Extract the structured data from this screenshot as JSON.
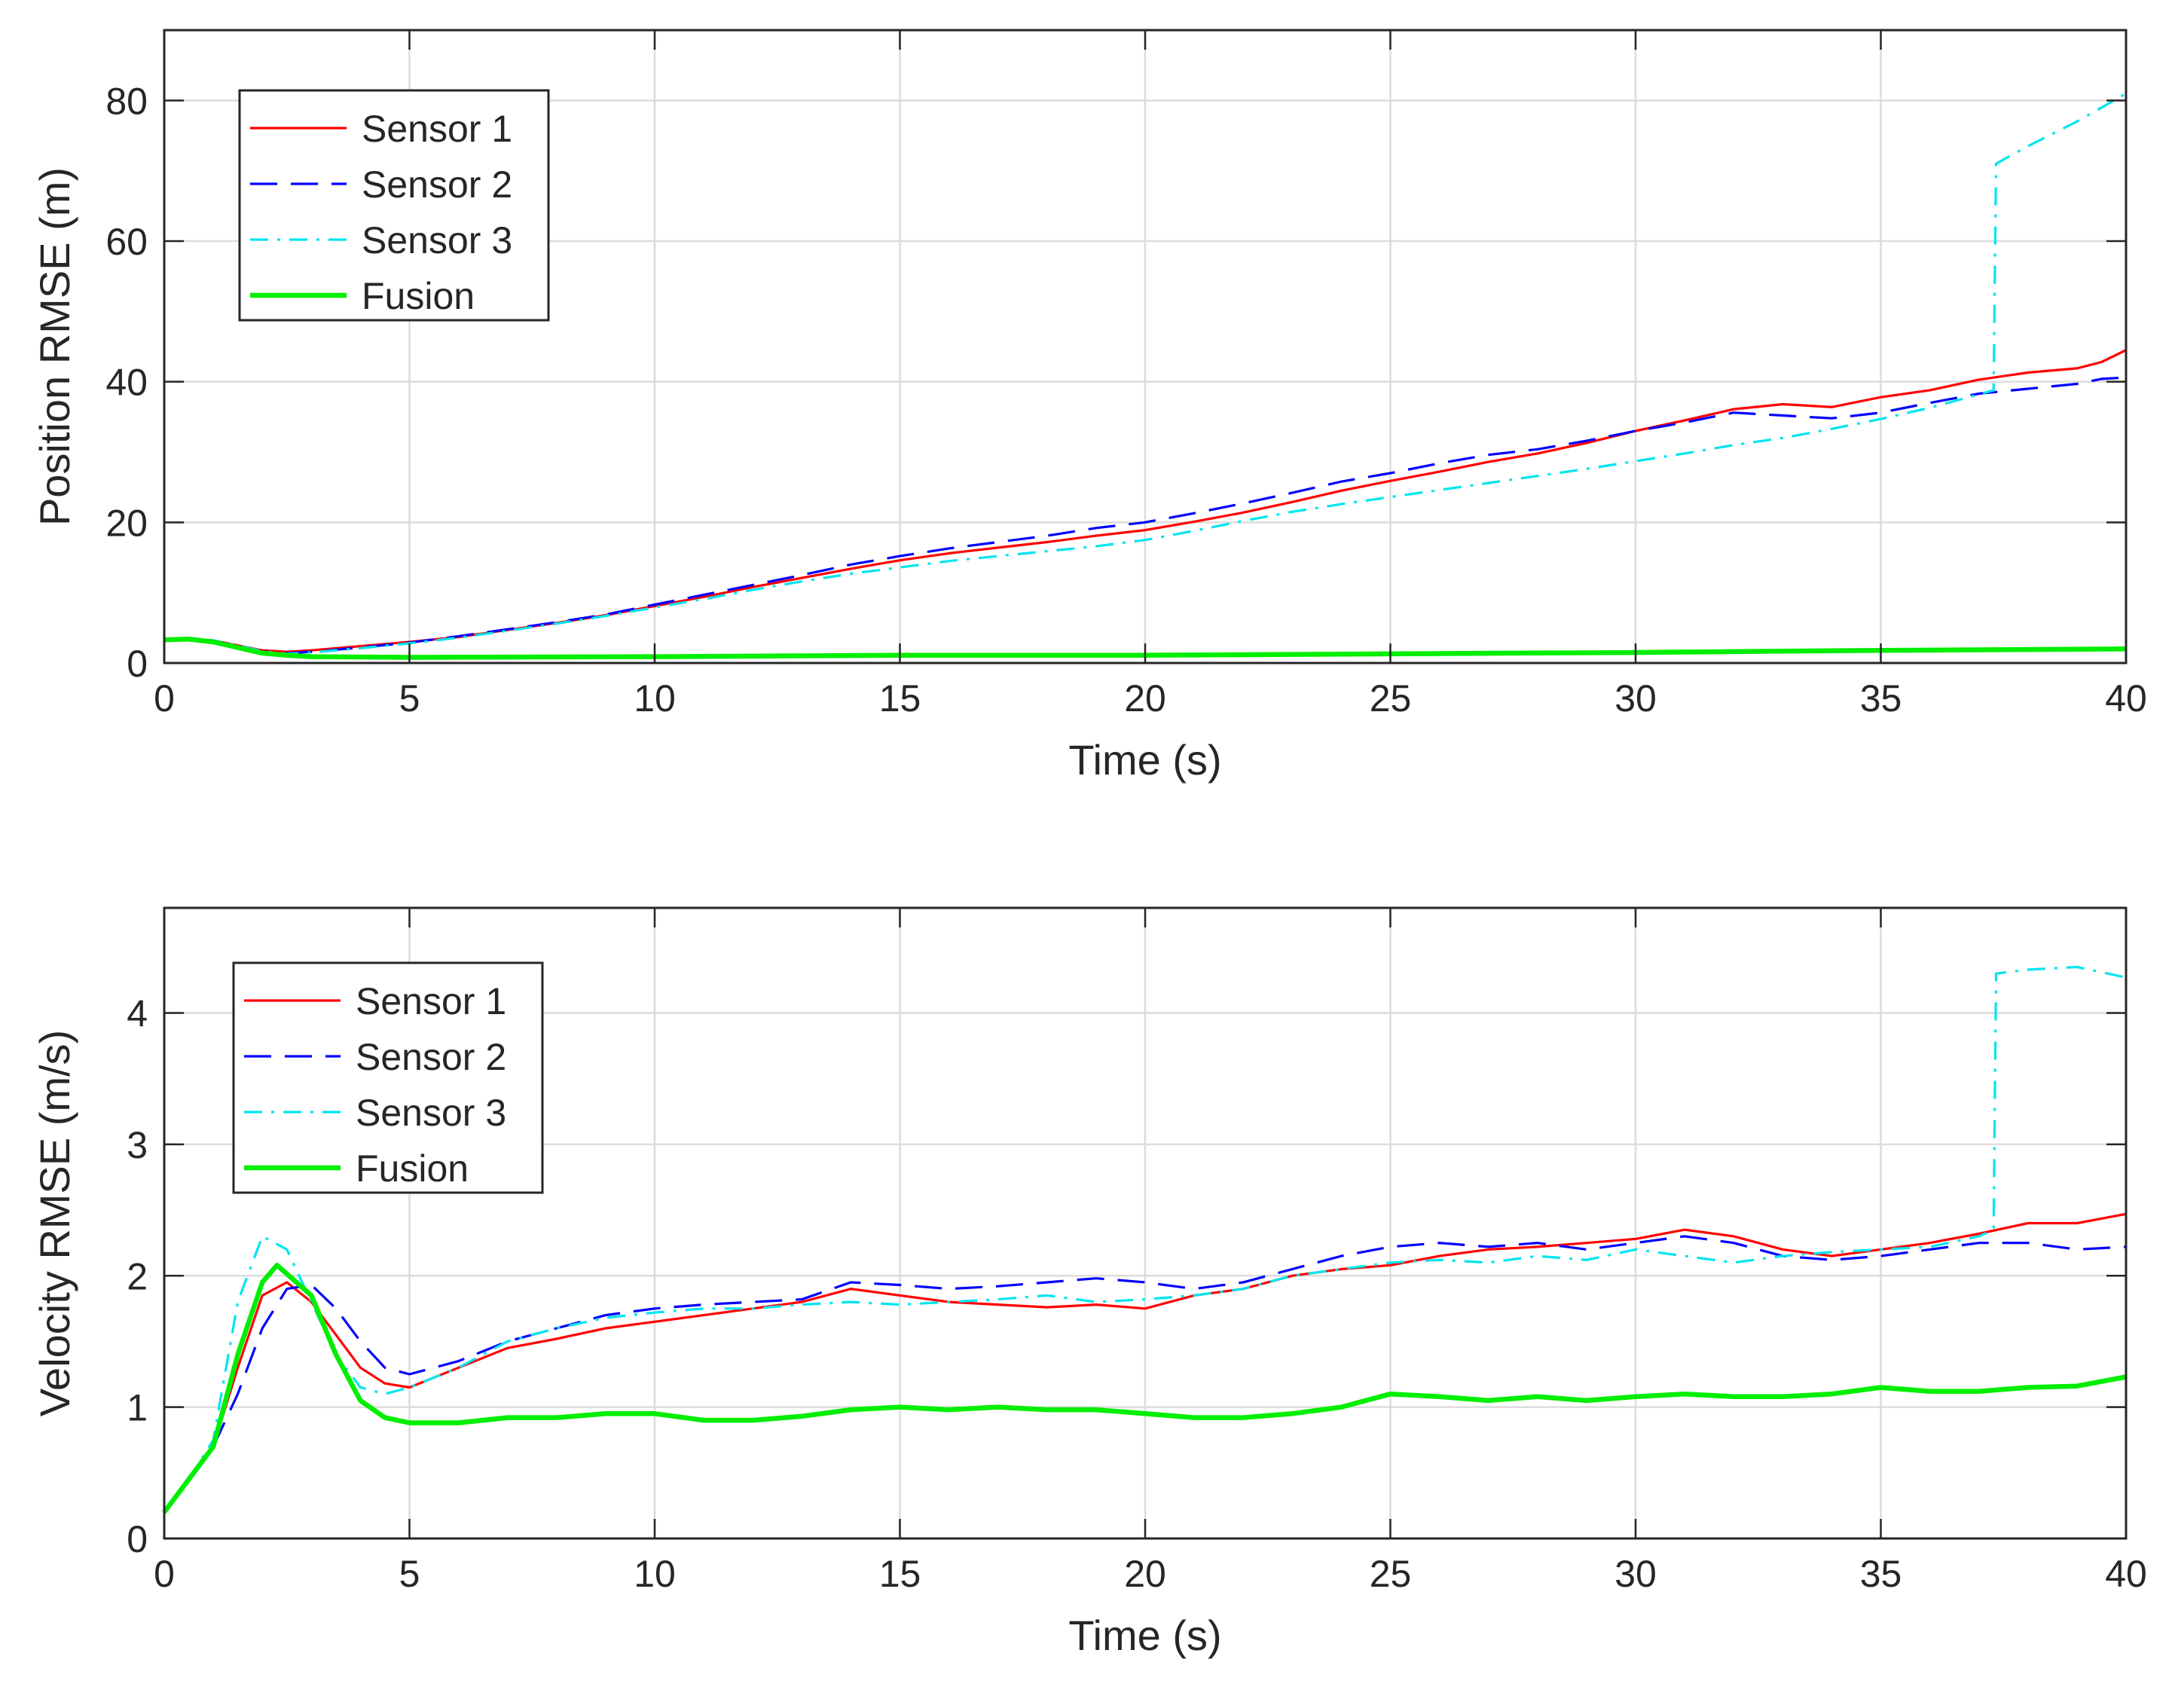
{
  "chart_data": [
    {
      "type": "line",
      "title": "",
      "xlabel": "Time (s)",
      "ylabel": "Position RMSE (m)",
      "xlim": [
        0,
        40
      ],
      "ylim": [
        0,
        90
      ],
      "xticks": [
        0,
        5,
        10,
        15,
        20,
        25,
        30,
        35,
        40
      ],
      "yticks": [
        0,
        20,
        40,
        60,
        80
      ],
      "grid": true,
      "legend_position": "top-left",
      "series": [
        {
          "name": "Sensor 1",
          "color": "#ff0000",
          "style": "solid",
          "x": [
            0,
            0.5,
            1,
            1.5,
            2,
            2.5,
            3,
            4,
            5,
            6,
            7,
            8,
            9,
            10,
            11,
            12,
            13,
            14,
            15,
            16,
            17,
            18,
            19,
            20,
            21,
            22,
            23,
            24,
            25,
            26,
            27,
            28,
            29,
            30,
            31,
            32,
            33,
            34,
            35,
            36,
            37,
            38,
            39,
            39.5,
            40
          ],
          "y": [
            3.3,
            3.4,
            3.2,
            2.5,
            1.8,
            1.6,
            1.8,
            2.4,
            3.0,
            3.7,
            4.7,
            5.7,
            6.8,
            8.1,
            9.4,
            10.8,
            12.1,
            13.4,
            14.6,
            15.6,
            16.4,
            17.2,
            18.1,
            18.9,
            20.1,
            21.4,
            22.9,
            24.5,
            25.9,
            27.2,
            28.6,
            29.8,
            31.3,
            33.0,
            34.5,
            36.1,
            36.8,
            36.4,
            37.8,
            38.8,
            40.3,
            41.3,
            41.9,
            42.8,
            44.5
          ]
        },
        {
          "name": "Sensor 2",
          "color": "#0000ff",
          "style": "dashed",
          "x": [
            0,
            0.5,
            1,
            1.5,
            2,
            2.5,
            3,
            4,
            5,
            6,
            7,
            8,
            9,
            10,
            11,
            12,
            13,
            14,
            15,
            16,
            17,
            18,
            19,
            20,
            21,
            22,
            23,
            24,
            25,
            26,
            27,
            28,
            29,
            30,
            31,
            32,
            33,
            34,
            35,
            36,
            37,
            38,
            39,
            39.5,
            40
          ],
          "y": [
            3.3,
            3.4,
            3.2,
            2.4,
            1.6,
            1.4,
            1.6,
            2.2,
            2.9,
            3.8,
            4.8,
            5.8,
            6.9,
            8.3,
            9.7,
            11.1,
            12.5,
            14.0,
            15.2,
            16.3,
            17.2,
            18.1,
            19.2,
            20.0,
            21.3,
            22.7,
            24.2,
            25.8,
            27.0,
            28.4,
            29.6,
            30.4,
            31.6,
            33.0,
            34.2,
            35.6,
            35.2,
            34.8,
            35.6,
            37.0,
            38.3,
            39.0,
            39.7,
            40.4,
            40.6
          ]
        },
        {
          "name": "Sensor 3",
          "color": "#00e5ee",
          "style": "dashdot",
          "x": [
            0,
            0.5,
            1,
            1.5,
            2,
            2.5,
            3,
            4,
            5,
            6,
            7,
            8,
            9,
            10,
            11,
            12,
            13,
            14,
            15,
            16,
            17,
            18,
            19,
            20,
            21,
            22,
            23,
            24,
            25,
            26,
            27,
            28,
            29,
            30,
            31,
            32,
            33,
            34,
            35,
            36,
            37,
            37.3,
            37.35,
            38,
            39,
            39.5,
            40
          ],
          "y": [
            3.3,
            3.4,
            3.2,
            2.5,
            1.7,
            1.3,
            1.5,
            2.1,
            2.8,
            3.6,
            4.6,
            5.6,
            6.7,
            7.9,
            9.1,
            10.4,
            11.6,
            12.7,
            13.6,
            14.5,
            15.2,
            15.9,
            16.6,
            17.5,
            18.8,
            20.2,
            21.5,
            22.6,
            23.6,
            24.6,
            25.6,
            26.6,
            27.6,
            28.7,
            29.8,
            31.0,
            32.0,
            33.3,
            34.7,
            36.3,
            38.2,
            38.8,
            71.0,
            73.5,
            77.0,
            79.0,
            81.0
          ]
        },
        {
          "name": "Fusion",
          "color": "#00ee00",
          "style": "solid-thick",
          "x": [
            0,
            0.5,
            1,
            1.5,
            2,
            2.5,
            3,
            5,
            10,
            15,
            20,
            25,
            30,
            35,
            40
          ],
          "y": [
            3.3,
            3.4,
            3.0,
            2.2,
            1.4,
            1.1,
            0.9,
            0.8,
            0.9,
            1.1,
            1.1,
            1.3,
            1.5,
            1.8,
            2.0
          ]
        }
      ]
    },
    {
      "type": "line",
      "title": "",
      "xlabel": "Time (s)",
      "ylabel": "Velocity RMSE (m/s)",
      "xlim": [
        0,
        40
      ],
      "ylim": [
        0,
        4.8
      ],
      "xticks": [
        0,
        5,
        10,
        15,
        20,
        25,
        30,
        35,
        40
      ],
      "yticks": [
        0,
        1,
        2,
        3,
        4
      ],
      "grid": true,
      "legend_position": "top-left",
      "series": [
        {
          "name": "Sensor 1",
          "color": "#ff0000",
          "style": "solid",
          "x": [
            0,
            0.5,
            1,
            1.5,
            2,
            2.5,
            3,
            3.5,
            4,
            4.5,
            5,
            6,
            7,
            8,
            9,
            10,
            11,
            12,
            13,
            14,
            15,
            16,
            17,
            18,
            19,
            20,
            21,
            22,
            23,
            24,
            25,
            26,
            27,
            28,
            29,
            30,
            31,
            32,
            33,
            34,
            35,
            36,
            37,
            38,
            39,
            40
          ],
          "y": [
            0.2,
            0.45,
            0.7,
            1.3,
            1.85,
            1.95,
            1.8,
            1.55,
            1.3,
            1.18,
            1.15,
            1.3,
            1.45,
            1.52,
            1.6,
            1.65,
            1.7,
            1.75,
            1.8,
            1.9,
            1.85,
            1.8,
            1.78,
            1.76,
            1.78,
            1.75,
            1.85,
            1.9,
            2.0,
            2.05,
            2.08,
            2.15,
            2.2,
            2.22,
            2.25,
            2.28,
            2.35,
            2.3,
            2.2,
            2.15,
            2.2,
            2.25,
            2.32,
            2.4,
            2.4,
            2.47
          ]
        },
        {
          "name": "Sensor 2",
          "color": "#0000ff",
          "style": "dashed",
          "x": [
            0,
            0.5,
            1,
            1.5,
            2,
            2.5,
            3,
            3.5,
            4,
            4.5,
            5,
            6,
            7,
            8,
            9,
            10,
            11,
            12,
            13,
            14,
            15,
            16,
            17,
            18,
            19,
            20,
            21,
            22,
            23,
            24,
            25,
            26,
            27,
            28,
            29,
            30,
            31,
            32,
            33,
            34,
            35,
            36,
            37,
            38,
            39,
            40
          ],
          "y": [
            0.2,
            0.45,
            0.7,
            1.1,
            1.6,
            1.9,
            1.93,
            1.75,
            1.5,
            1.3,
            1.25,
            1.35,
            1.5,
            1.6,
            1.7,
            1.75,
            1.78,
            1.8,
            1.82,
            1.95,
            1.93,
            1.9,
            1.92,
            1.95,
            1.98,
            1.95,
            1.9,
            1.95,
            2.05,
            2.15,
            2.22,
            2.25,
            2.22,
            2.25,
            2.2,
            2.25,
            2.3,
            2.25,
            2.15,
            2.12,
            2.15,
            2.2,
            2.25,
            2.25,
            2.2,
            2.22
          ]
        },
        {
          "name": "Sensor 3",
          "color": "#00e5ee",
          "style": "dashdot",
          "x": [
            0,
            0.5,
            1,
            1.5,
            2,
            2.5,
            3,
            3.5,
            4,
            4.5,
            5,
            6,
            7,
            8,
            9,
            10,
            11,
            12,
            13,
            14,
            15,
            16,
            17,
            18,
            19,
            20,
            21,
            22,
            23,
            24,
            25,
            26,
            27,
            28,
            29,
            30,
            31,
            32,
            33,
            34,
            35,
            36,
            37,
            37.3,
            37.35,
            38,
            39,
            40
          ],
          "y": [
            0.2,
            0.45,
            0.75,
            1.8,
            2.3,
            2.2,
            1.8,
            1.4,
            1.15,
            1.1,
            1.15,
            1.3,
            1.5,
            1.6,
            1.68,
            1.72,
            1.75,
            1.75,
            1.78,
            1.8,
            1.78,
            1.8,
            1.82,
            1.85,
            1.8,
            1.82,
            1.85,
            1.9,
            2.0,
            2.05,
            2.1,
            2.12,
            2.1,
            2.15,
            2.12,
            2.2,
            2.15,
            2.1,
            2.15,
            2.18,
            2.2,
            2.22,
            2.3,
            2.35,
            4.3,
            4.33,
            4.35,
            4.27
          ]
        },
        {
          "name": "Fusion",
          "color": "#00ee00",
          "style": "solid-thick",
          "x": [
            0,
            0.5,
            1,
            1.5,
            2,
            2.3,
            3,
            3.5,
            4,
            4.5,
            5,
            6,
            7,
            8,
            9,
            10,
            11,
            12,
            13,
            14,
            15,
            16,
            17,
            18,
            19,
            20,
            21,
            22,
            23,
            24,
            25,
            26,
            27,
            28,
            29,
            30,
            31,
            32,
            33,
            34,
            35,
            36,
            37,
            38,
            39,
            40
          ],
          "y": [
            0.2,
            0.45,
            0.7,
            1.4,
            1.95,
            2.08,
            1.85,
            1.4,
            1.05,
            0.92,
            0.88,
            0.88,
            0.92,
            0.92,
            0.95,
            0.95,
            0.9,
            0.9,
            0.93,
            0.98,
            1.0,
            0.98,
            1.0,
            0.98,
            0.98,
            0.95,
            0.92,
            0.92,
            0.95,
            1.0,
            1.1,
            1.08,
            1.05,
            1.08,
            1.05,
            1.08,
            1.1,
            1.08,
            1.08,
            1.1,
            1.15,
            1.12,
            1.12,
            1.15,
            1.16,
            1.23
          ]
        }
      ]
    }
  ]
}
